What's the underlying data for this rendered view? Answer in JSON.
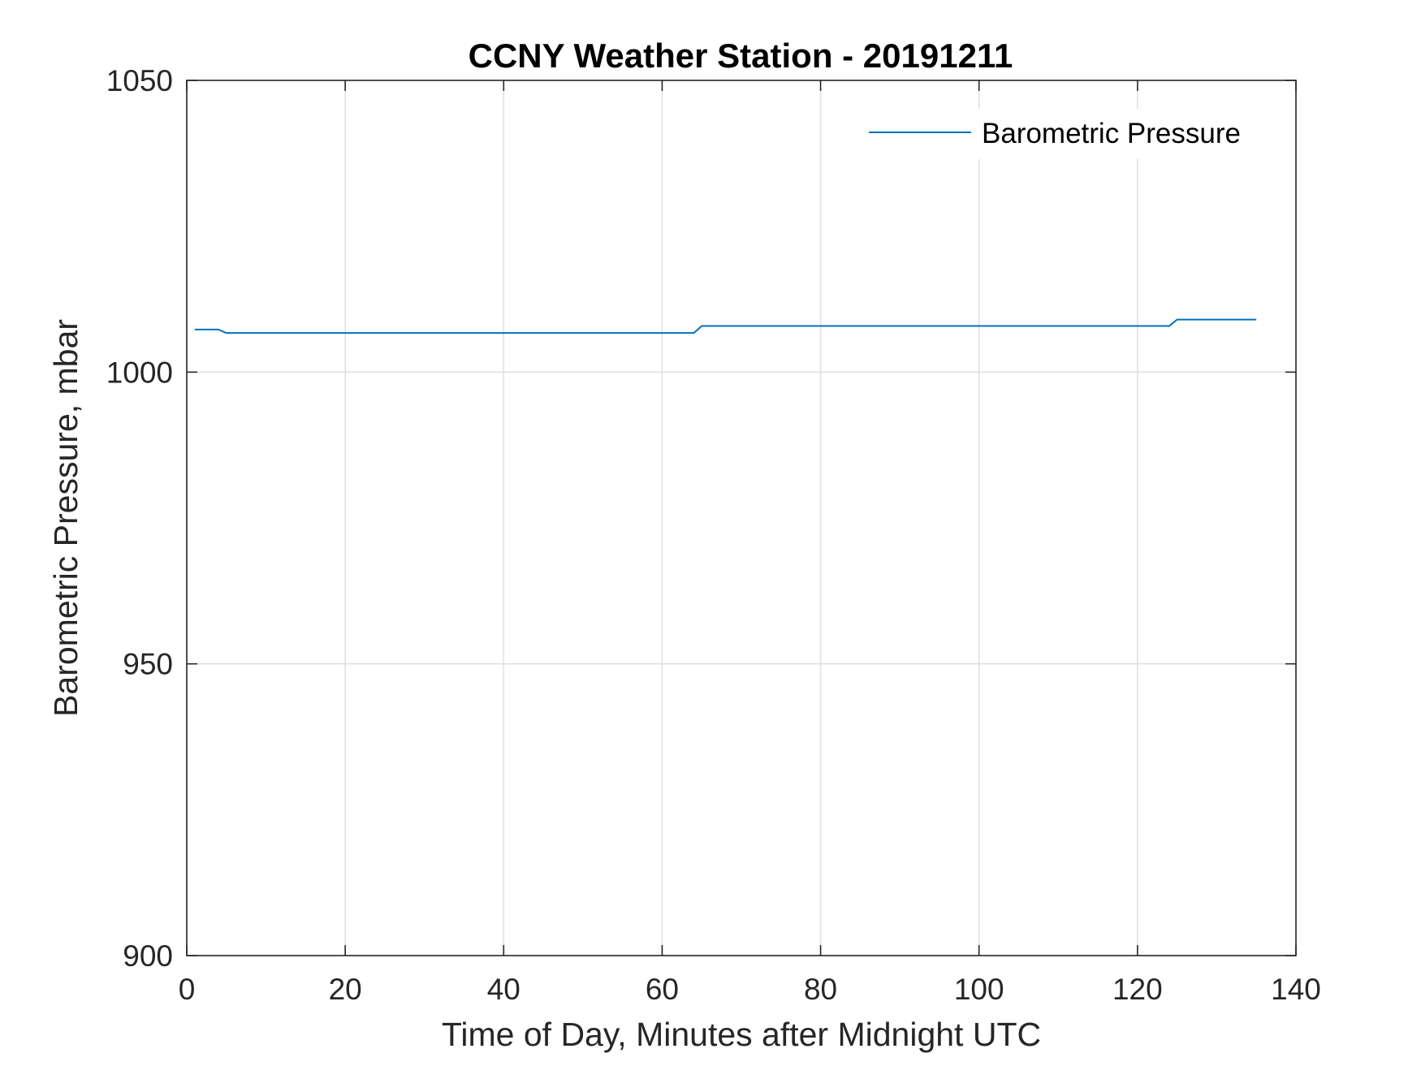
{
  "chart_data": {
    "type": "line",
    "title": "CCNY Weather Station - 20191211",
    "xlabel": "Time of Day, Minutes after Midnight UTC",
    "ylabel": "Barometric Pressure, mbar",
    "xlim": [
      0,
      140
    ],
    "ylim": [
      900,
      1050
    ],
    "xticks": [
      0,
      20,
      40,
      60,
      80,
      100,
      120,
      140
    ],
    "yticks": [
      900,
      950,
      1000,
      1050
    ],
    "xtick_labels": [
      "0",
      "20",
      "40",
      "60",
      "80",
      "100",
      "120",
      "140"
    ],
    "ytick_labels": [
      "900",
      "950",
      "1000",
      "1050"
    ],
    "grid": true,
    "legend_position": "top-right",
    "series": [
      {
        "name": "Barometric Pressure",
        "color": "#0072BD",
        "x": [
          1,
          2,
          3,
          4,
          5,
          10,
          20,
          30,
          40,
          50,
          60,
          64,
          65,
          70,
          80,
          90,
          100,
          110,
          120,
          124,
          125,
          130,
          135
        ],
        "y": [
          1007.3,
          1007.3,
          1007.3,
          1007.3,
          1006.7,
          1006.7,
          1006.7,
          1006.7,
          1006.7,
          1006.7,
          1006.7,
          1006.7,
          1007.9,
          1007.9,
          1007.9,
          1007.9,
          1007.9,
          1007.9,
          1007.9,
          1007.9,
          1009.0,
          1009.0,
          1009.0
        ]
      }
    ]
  }
}
